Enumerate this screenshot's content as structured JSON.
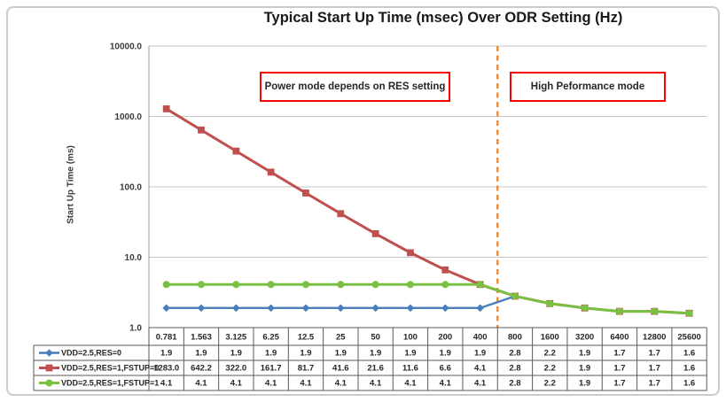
{
  "figure": {
    "title": "Typical Start Up Time (msec) Over ODR Setting (Hz)",
    "y_axis_title": "Start Up Time (ms)",
    "annotations": [
      {
        "text": "Power mode depends on RES setting",
        "border_color": "#FF0000"
      },
      {
        "text": "High Peformance mode",
        "border_color": "#FF0000"
      }
    ]
  },
  "chart_data": {
    "type": "line",
    "title": "Typical Start Up Time (msec) Over ODR Setting (Hz)",
    "xlabel": "",
    "ylabel": "Start Up Time (ms)",
    "y_scale": "log",
    "ylim": [
      1.0,
      10000.0
    ],
    "y_tick_labels": [
      "10000.0",
      "1000.0",
      "100.0",
      "10.0",
      "1.0"
    ],
    "y_tick_values": [
      10000,
      1000,
      100,
      10,
      1
    ],
    "grid": "horizontal",
    "legend_position": "table-left",
    "data_table_shown": true,
    "categories": [
      "0.781",
      "1.563",
      "3.125",
      "6.25",
      "12.5",
      "25",
      "50",
      "100",
      "200",
      "400",
      "800",
      "1600",
      "3200",
      "6400",
      "12800",
      "25600"
    ],
    "series": [
      {
        "name": "VDD=2.5,RES=0",
        "color": "#4A7EBB",
        "marker": "diamond",
        "values": [
          1.9,
          1.9,
          1.9,
          1.9,
          1.9,
          1.9,
          1.9,
          1.9,
          1.9,
          1.9,
          2.8,
          2.2,
          1.9,
          1.7,
          1.7,
          1.6
        ]
      },
      {
        "name": "VDD=2.5,RES=1,FSTUP=0",
        "color": "#C0504D",
        "marker": "square",
        "values": [
          1283.0,
          642.2,
          322.0,
          161.7,
          81.7,
          41.6,
          21.6,
          11.6,
          6.6,
          4.1,
          2.8,
          2.2,
          1.9,
          1.7,
          1.7,
          1.6
        ]
      },
      {
        "name": "VDD=2.5,RES=1,FSTUP=1",
        "color": "#7AC143",
        "marker": "circle",
        "values": [
          4.1,
          4.1,
          4.1,
          4.1,
          4.1,
          4.1,
          4.1,
          4.1,
          4.1,
          4.1,
          2.8,
          2.2,
          1.9,
          1.7,
          1.7,
          1.6
        ]
      }
    ],
    "divider_line": {
      "color": "#ED8022",
      "style": "dashed",
      "position_between": [
        "400",
        "800"
      ]
    }
  }
}
